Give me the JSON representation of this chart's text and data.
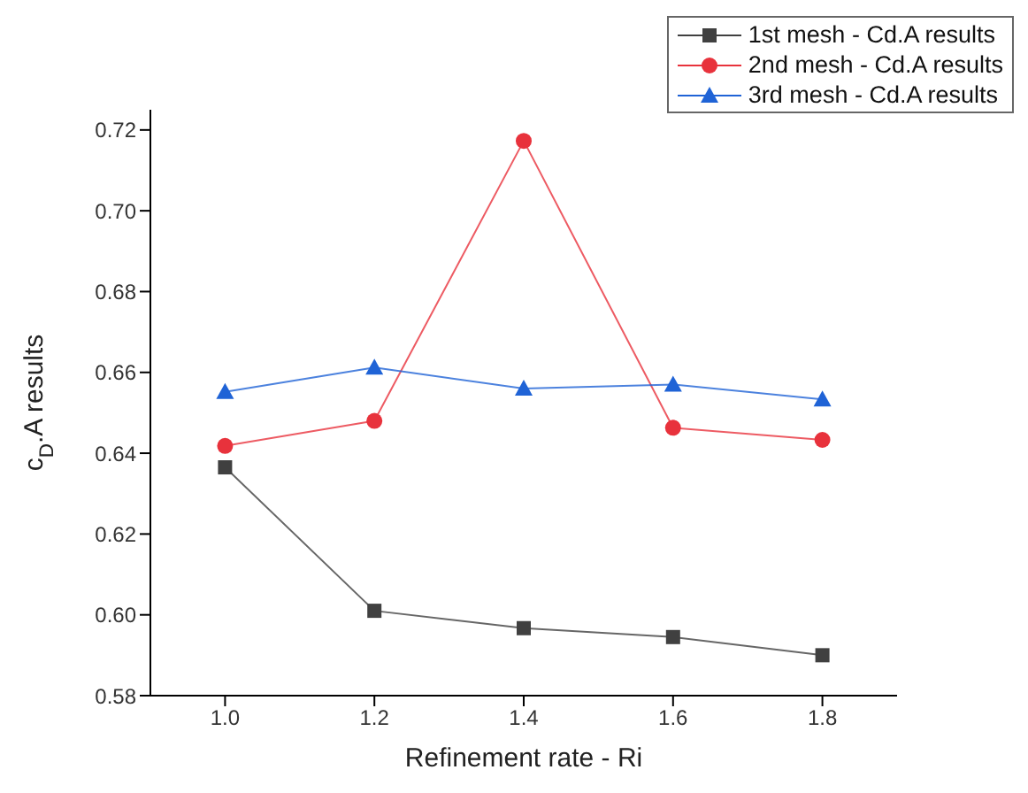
{
  "chart_data": {
    "type": "line",
    "xlabel": "Refinement rate - Ri",
    "ylabel": "c$_{D}$.A results",
    "x": [
      1.0,
      1.2,
      1.4,
      1.6,
      1.8
    ],
    "series": [
      {
        "name": "1st mesh - Cd.A results",
        "color": "#404040",
        "marker": "square",
        "values": [
          0.6365,
          0.601,
          0.5967,
          0.5945,
          0.59
        ]
      },
      {
        "name": "2nd mesh - Cd.A results",
        "color": "#e8323c",
        "marker": "circle",
        "values": [
          0.6418,
          0.648,
          0.7173,
          0.6463,
          0.6433
        ]
      },
      {
        "name": "3rd mesh - Cd.A results",
        "color": "#1f63d6",
        "marker": "triangle",
        "values": [
          0.6552,
          0.6612,
          0.656,
          0.657,
          0.6533
        ]
      }
    ],
    "xlim": [
      0.9,
      1.9
    ],
    "xticks": [
      {
        "value": 1.0,
        "label": "1.0"
      },
      1.2,
      1.4,
      1.6,
      1.8
    ],
    "ylim": [
      0.58,
      0.725
    ],
    "yticks": [
      {
        "value": 0.58,
        "label": "0.58"
      },
      {
        "value": 0.6,
        "label": "0.60"
      },
      0.62,
      0.64,
      0.66,
      0.68,
      {
        "value": 0.7,
        "label": "0.70"
      },
      0.72
    ],
    "grid": false,
    "legend": "top right"
  }
}
